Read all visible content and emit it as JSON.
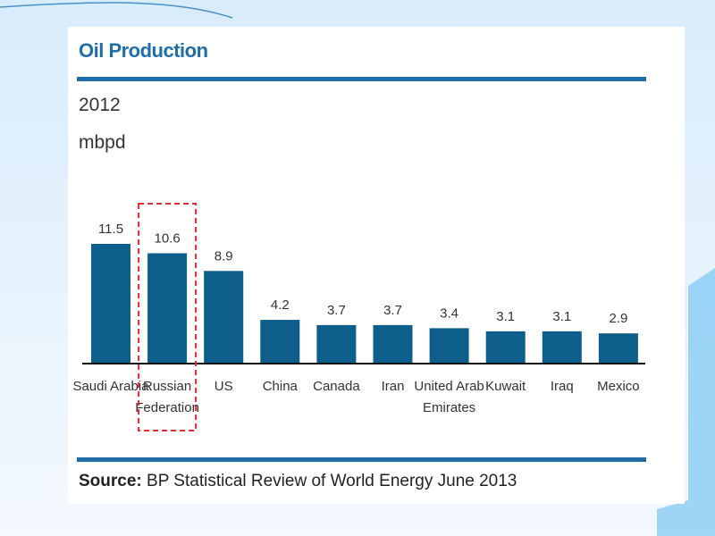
{
  "chart_data": {
    "type": "bar",
    "title": "Oil Production",
    "subtitle": "2012",
    "ylabel": "mbpd",
    "categories": [
      [
        "Saudi Arabia"
      ],
      [
        "Russian",
        "Federation"
      ],
      [
        "US"
      ],
      [
        "China"
      ],
      [
        "Canada"
      ],
      [
        "Iran"
      ],
      [
        "United Arab",
        "Emirates"
      ],
      [
        "Kuwait"
      ],
      [
        "Iraq"
      ],
      [
        "Mexico"
      ]
    ],
    "values": [
      11.5,
      10.6,
      8.9,
      4.2,
      3.7,
      3.7,
      3.4,
      3.1,
      3.1,
      2.9
    ],
    "value_labels": [
      "11.5",
      "10.6",
      "8.9",
      "4.2",
      "3.7",
      "3.7",
      "3.4",
      "3.1",
      "3.1",
      "2.9"
    ],
    "ylim": [
      0,
      11.5
    ],
    "highlighted_category": "Russian Federation",
    "grid": false,
    "colors": {
      "bar": "#0e5e8c",
      "highlight_box": "#e8292f",
      "accent": "#1f6ea8"
    }
  },
  "source": {
    "label": "Source:",
    "text": " BP Statistical Review of World Energy June 2013"
  }
}
